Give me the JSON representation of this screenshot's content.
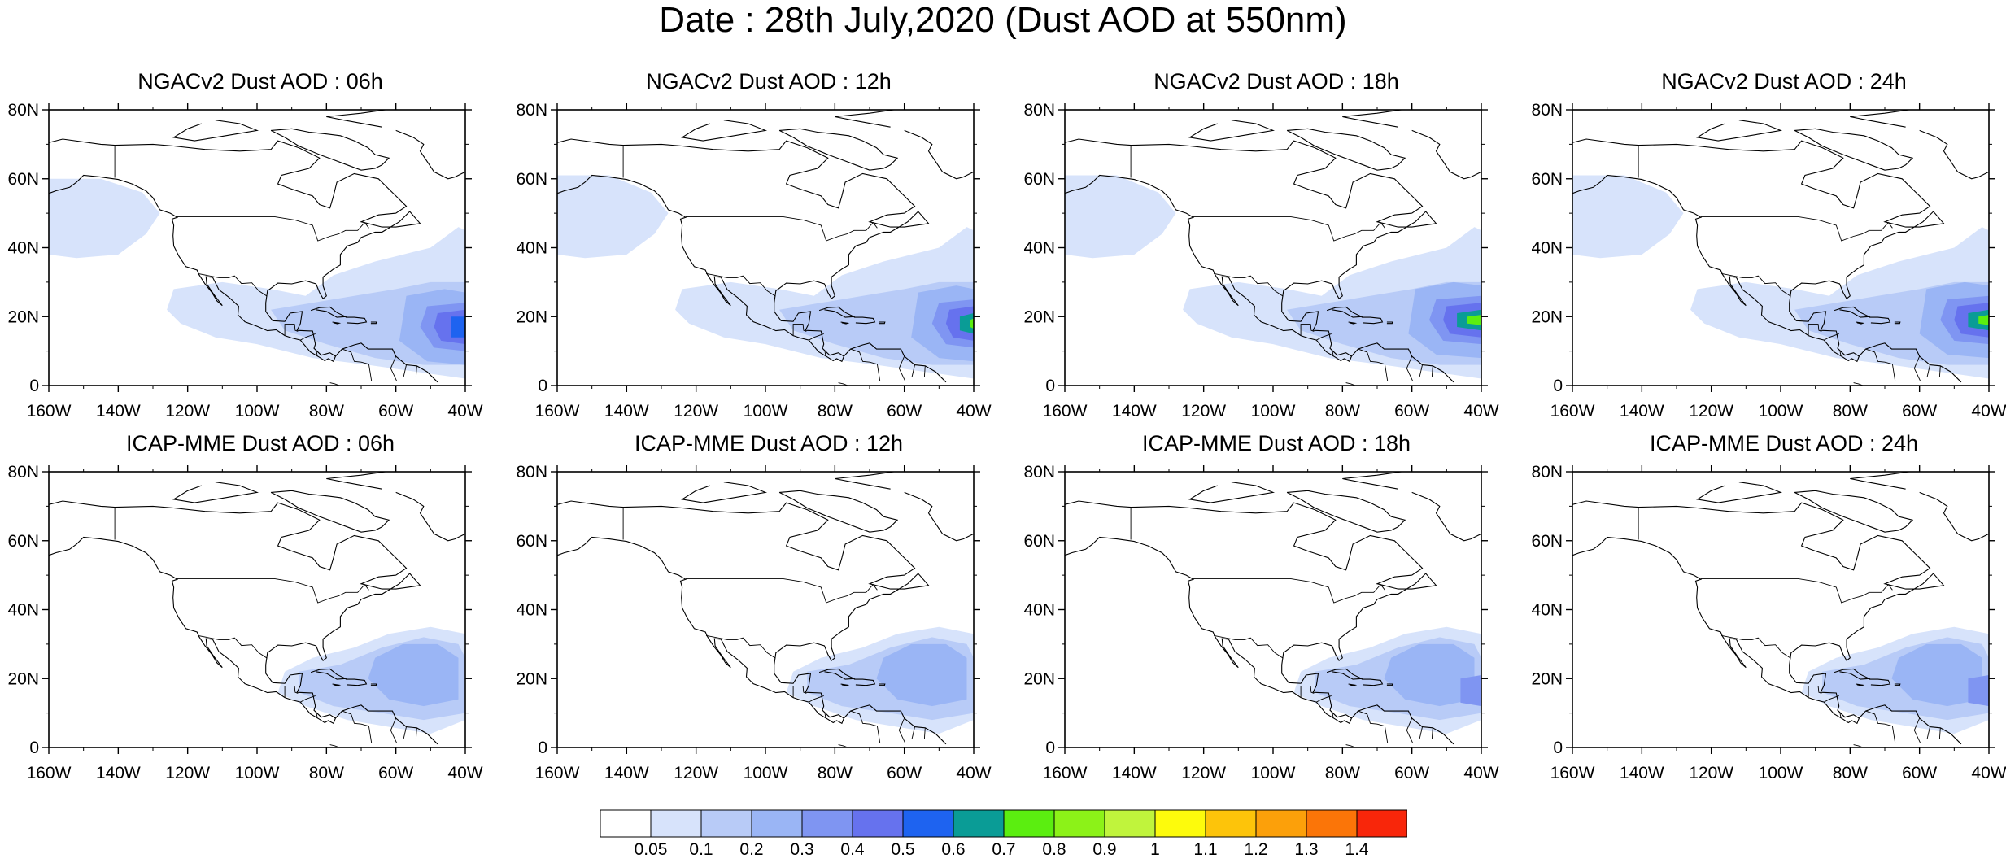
{
  "title": "Date : 28th July,2020 (Dust AOD at 550nm)",
  "map_axes": {
    "lat_labels": [
      "80N",
      "60N",
      "40N",
      "20N",
      "0"
    ],
    "lon_labels": [
      "160W",
      "140W",
      "120W",
      "100W",
      "80W",
      "60W",
      "40W"
    ]
  },
  "panels": [
    {
      "title": "NGACv2 Dust AOD : 06h",
      "model": "NGACv2",
      "lead": "06h"
    },
    {
      "title": "NGACv2 Dust AOD : 12h",
      "model": "NGACv2",
      "lead": "12h"
    },
    {
      "title": "NGACv2 Dust AOD : 18h",
      "model": "NGACv2",
      "lead": "18h"
    },
    {
      "title": "NGACv2 Dust AOD : 24h",
      "model": "NGACv2",
      "lead": "24h"
    },
    {
      "title": "ICAP-MME Dust AOD : 06h",
      "model": "ICAP-MME",
      "lead": "06h"
    },
    {
      "title": "ICAP-MME Dust AOD : 12h",
      "model": "ICAP-MME",
      "lead": "12h"
    },
    {
      "title": "ICAP-MME Dust AOD : 18h",
      "model": "ICAP-MME",
      "lead": "18h"
    },
    {
      "title": "ICAP-MME Dust AOD : 24h",
      "model": "ICAP-MME",
      "lead": "24h"
    }
  ],
  "colorbar": {
    "levels": [
      "0.05",
      "0.1",
      "0.2",
      "0.3",
      "0.4",
      "0.5",
      "0.6",
      "0.7",
      "0.8",
      "0.9",
      "1",
      "1.1",
      "1.2",
      "1.3",
      "1.4"
    ],
    "colors": [
      "#ffffff",
      "#d7e3fb",
      "#b8cbf7",
      "#9ab5f5",
      "#7f95f2",
      "#6672ee",
      "#1e63f0",
      "#0a9c96",
      "#5bee10",
      "#8cf218",
      "#c0f43c",
      "#fdfb0c",
      "#fdc40a",
      "#fca00a",
      "#fb7508",
      "#f8260a"
    ]
  },
  "colors": {
    "land_outline": "#000000",
    "background": "#ffffff"
  }
}
